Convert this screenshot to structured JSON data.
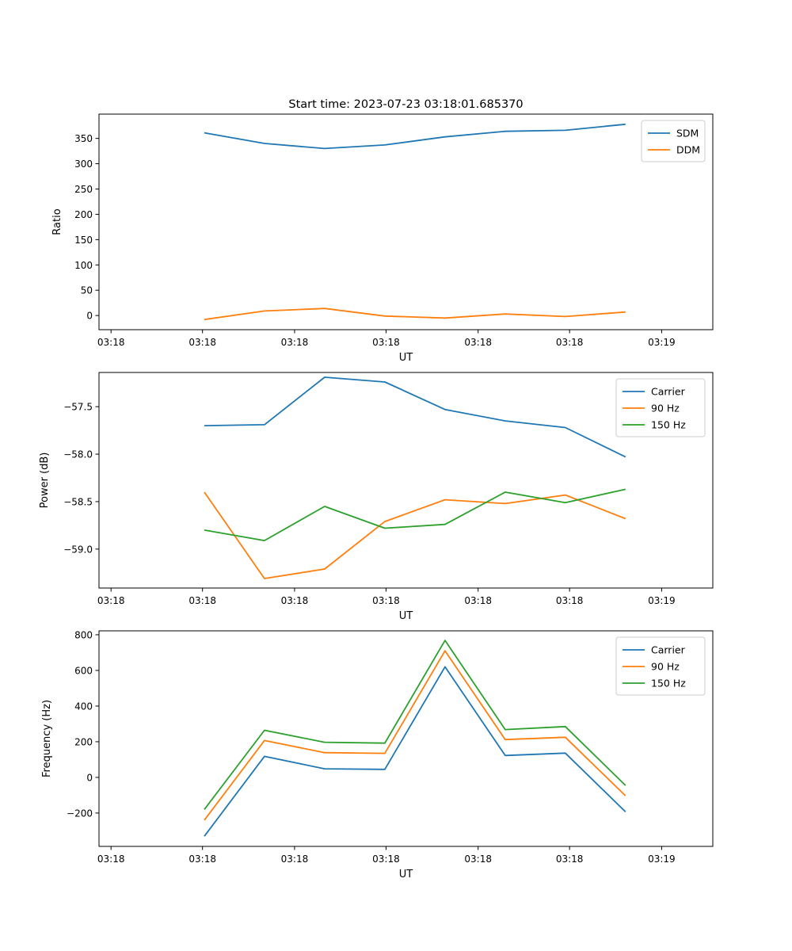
{
  "figure_title": "Start time: 2023-07-23 03:18:01.685370",
  "colors": {
    "blue": "#1f77b4",
    "orange": "#ff7f0e",
    "green": "#2ca02c"
  },
  "chart_data": [
    {
      "type": "line",
      "title": "Start time: 2023-07-23 03:18:01.685370",
      "xlabel": "UT",
      "ylabel": "Ratio",
      "x": [
        1,
        2,
        3,
        4,
        5,
        6,
        7,
        8
      ],
      "xlim": [
        -0.75,
        9.45
      ],
      "xtick_positions": [
        -0.55,
        0.97,
        2.5,
        4.02,
        5.55,
        7.07,
        8.6
      ],
      "xtick_labels": [
        "03:18",
        "03:18",
        "03:18",
        "03:18",
        "03:18",
        "03:18",
        "03:19"
      ],
      "ylim": [
        -28,
        398
      ],
      "yticks": [
        0,
        50,
        100,
        150,
        200,
        250,
        300,
        350
      ],
      "ytick_labels": [
        "0",
        "50",
        "100",
        "150",
        "200",
        "250",
        "300",
        "350"
      ],
      "legend_location": "upper right",
      "series": [
        {
          "name": "SDM",
          "color": "#1f77b4",
          "values": [
            361,
            340,
            330,
            337,
            353,
            364,
            366,
            378
          ]
        },
        {
          "name": "DDM",
          "color": "#ff7f0e",
          "values": [
            -8,
            9,
            14,
            -1,
            -5,
            3,
            -2,
            7
          ]
        }
      ]
    },
    {
      "type": "line",
      "title": "",
      "xlabel": "UT",
      "ylabel": "Power (dB)",
      "x": [
        1,
        2,
        3,
        4,
        5,
        6,
        7,
        8
      ],
      "xlim": [
        -0.75,
        9.45
      ],
      "xtick_positions": [
        -0.55,
        0.97,
        2.5,
        4.02,
        5.55,
        7.07,
        8.6
      ],
      "xtick_labels": [
        "03:18",
        "03:18",
        "03:18",
        "03:18",
        "03:18",
        "03:18",
        "03:19"
      ],
      "ylim": [
        -59.41,
        -57.14
      ],
      "yticks": [
        -59.0,
        -58.5,
        -58.0,
        -57.5
      ],
      "ytick_labels": [
        "−59.0",
        "−58.5",
        "−58.0",
        "−57.5"
      ],
      "legend_location": "upper right",
      "series": [
        {
          "name": "Carrier",
          "color": "#1f77b4",
          "values": [
            -57.7,
            -57.69,
            -57.19,
            -57.24,
            -57.53,
            -57.65,
            -57.72,
            -58.03
          ]
        },
        {
          "name": "90 Hz",
          "color": "#ff7f0e",
          "values": [
            -58.4,
            -59.31,
            -59.21,
            -58.71,
            -58.48,
            -58.52,
            -58.43,
            -58.68
          ]
        },
        {
          "name": "150 Hz",
          "color": "#2ca02c",
          "values": [
            -58.8,
            -58.91,
            -58.55,
            -58.78,
            -58.74,
            -58.4,
            -58.51,
            -58.37
          ]
        }
      ]
    },
    {
      "type": "line",
      "title": "",
      "xlabel": "UT",
      "ylabel": "Frequency (Hz)",
      "x": [
        1,
        2,
        3,
        4,
        5,
        6,
        7,
        8
      ],
      "xlim": [
        -0.75,
        9.45
      ],
      "xtick_positions": [
        -0.55,
        0.97,
        2.5,
        4.02,
        5.55,
        7.07,
        8.6
      ],
      "xtick_labels": [
        "03:18",
        "03:18",
        "03:18",
        "03:18",
        "03:18",
        "03:18",
        "03:19"
      ],
      "ylim": [
        -387,
        822
      ],
      "yticks": [
        -200,
        0,
        200,
        400,
        600,
        800
      ],
      "ytick_labels": [
        "−200",
        "0",
        "200",
        "400",
        "600",
        "800"
      ],
      "legend_location": "upper right",
      "series": [
        {
          "name": "Carrier",
          "color": "#1f77b4",
          "values": [
            -330,
            118,
            48,
            45,
            620,
            123,
            136,
            -193
          ]
        },
        {
          "name": "90 Hz",
          "color": "#ff7f0e",
          "values": [
            -240,
            207,
            139,
            135,
            710,
            212,
            225,
            -103
          ]
        },
        {
          "name": "150 Hz",
          "color": "#2ca02c",
          "values": [
            -180,
            264,
            197,
            192,
            768,
            268,
            285,
            -45
          ]
        }
      ]
    }
  ]
}
